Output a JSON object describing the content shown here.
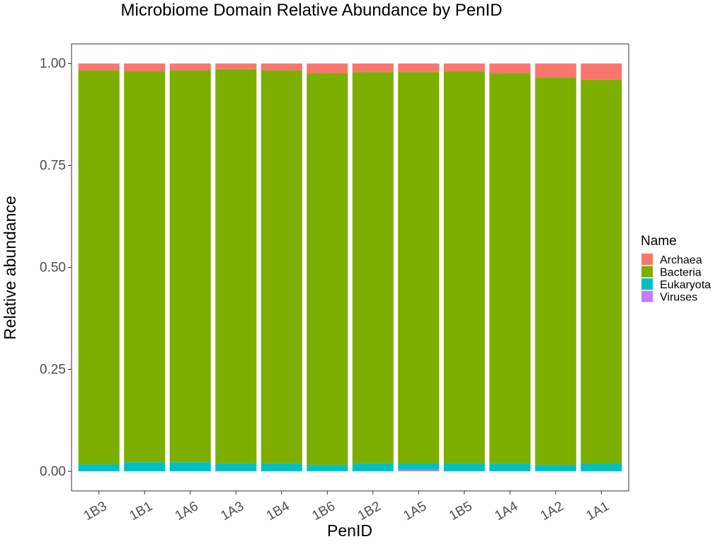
{
  "chart_data": {
    "type": "bar",
    "stacked": true,
    "title": "Microbiome Domain Relative Abundance by PenID",
    "xlabel": "PenID",
    "ylabel": "Relative abundance",
    "ylim": [
      -0.048,
      1.048
    ],
    "yticks": [
      0.0,
      0.25,
      0.5,
      0.75,
      1.0
    ],
    "ytick_labels": [
      "0.00",
      "0.25",
      "0.50",
      "0.75",
      "1.00"
    ],
    "categories": [
      "1B3",
      "1B1",
      "1A6",
      "1A3",
      "1B4",
      "1B6",
      "1B2",
      "1A5",
      "1B5",
      "1A4",
      "1A2",
      "1A1"
    ],
    "grid": false,
    "legend_position": "right",
    "legend_title": "Name",
    "series": [
      {
        "name": "Viruses",
        "color": "#C77CFF",
        "values": [
          0.0,
          0.0,
          0.0,
          0.0,
          0.0,
          0.0,
          0.0,
          0.003,
          0.0,
          0.0,
          0.0,
          0.0
        ]
      },
      {
        "name": "Eukaryota",
        "color": "#00BFC4",
        "values": [
          0.017,
          0.022,
          0.022,
          0.02,
          0.02,
          0.016,
          0.02,
          0.015,
          0.019,
          0.019,
          0.016,
          0.018
        ]
      },
      {
        "name": "Bacteria",
        "color": "#7CAE00",
        "values": [
          0.966,
          0.959,
          0.961,
          0.966,
          0.963,
          0.96,
          0.959,
          0.961,
          0.962,
          0.957,
          0.95,
          0.942
        ]
      },
      {
        "name": "Archaea",
        "color": "#F8766D",
        "values": [
          0.017,
          0.019,
          0.017,
          0.014,
          0.017,
          0.024,
          0.021,
          0.021,
          0.019,
          0.024,
          0.034,
          0.04
        ]
      }
    ],
    "legend_order": [
      "Archaea",
      "Bacteria",
      "Eukaryota",
      "Viruses"
    ]
  }
}
